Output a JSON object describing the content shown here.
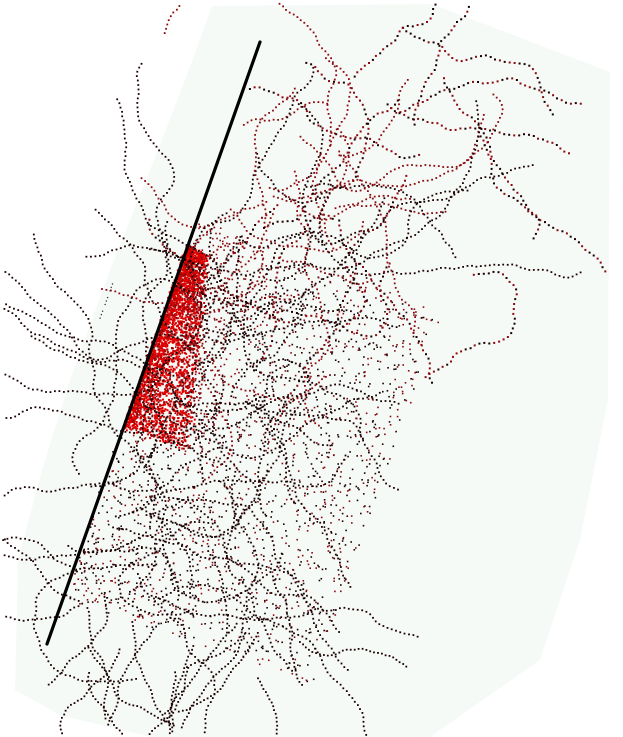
{
  "image": {
    "subject": "point-cloud-scatter",
    "colors": {
      "background": "#ffffff",
      "panel": "#f6faf7",
      "dense_points": "#e00000",
      "mid_points": "#8a0a10",
      "sparse_points": "#1a0000",
      "axis_line": "#000000",
      "caption_text": "#444444"
    }
  },
  "caption": {
    "text": "… … …"
  }
}
